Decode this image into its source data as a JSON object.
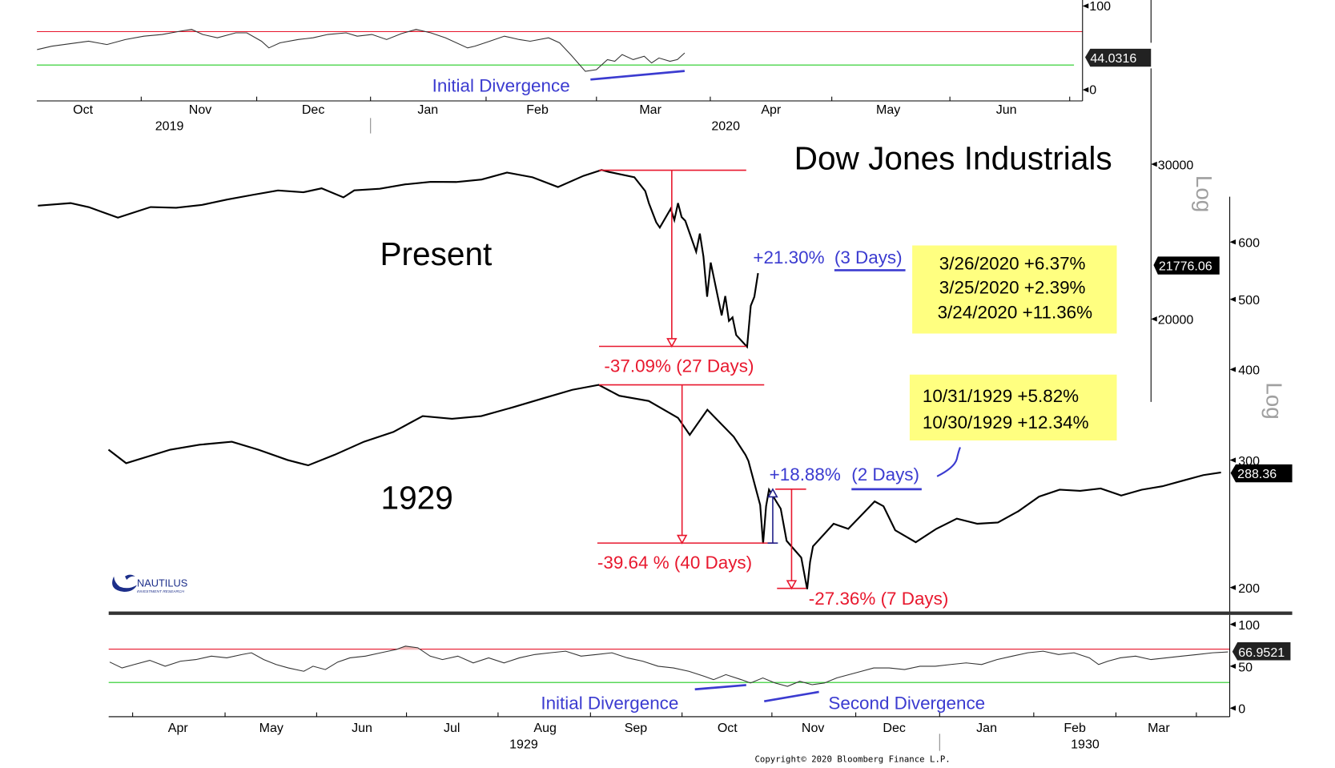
{
  "title": "Dow Jones Industrials",
  "labels": {
    "present": "Present",
    "year1929": "1929",
    "present_drop": "-37.09% (27 Days)",
    "present_rebound_pct": "+21.30%",
    "present_rebound_days": "(3 Days)",
    "drop1929": "-39.64 % (40 Days)",
    "rebound1929_pct": "+18.88%",
    "rebound1929_days": "(2 Days)",
    "second_drop1929": "-27.36% (7 Days)",
    "initial_divergence_top": "Initial Divergence",
    "initial_divergence_bottom": "Initial Divergence",
    "second_divergence": "Second Divergence",
    "log_present": "Log",
    "log_1929": "Log",
    "copyright": "Copyright© 2020 Bloomberg Finance L.P.",
    "logo_name": "NAUTILUS",
    "logo_sub": "INVESTMENT RESEARCH"
  },
  "present_box": [
    "3/26/2020 +6.37%",
    "3/25/2020 +2.39%",
    "3/24/2020 +11.36%"
  ],
  "box1929": [
    "10/31/1929 +5.82%",
    "10/30/1929 +12.34%"
  ],
  "colors": {
    "red": "#e8182e",
    "blue": "#3b3bd0",
    "green": "#22cc22",
    "yellow": "#ffff80",
    "overbought_fill": "#f4b8b8"
  },
  "chart_data": [
    {
      "type": "line",
      "name": "RSI (Present)",
      "ylim": [
        0,
        100
      ],
      "yticks": [
        "100",
        "0"
      ],
      "thresholds": {
        "overbought": 70,
        "oversold": 30
      },
      "last_value": "44.0316",
      "x_unit": "days since 2019-10-01",
      "xticks": [
        "Oct",
        "Nov",
        "Dec",
        "Jan",
        "Feb",
        "Mar",
        "Apr",
        "May",
        "Jun"
      ],
      "years": [
        "2019",
        "2020"
      ],
      "points": [
        [
          1,
          48
        ],
        [
          5,
          52
        ],
        [
          10,
          55
        ],
        [
          15,
          58
        ],
        [
          20,
          54
        ],
        [
          25,
          60
        ],
        [
          30,
          64
        ],
        [
          35,
          66
        ],
        [
          40,
          70
        ],
        [
          43,
          72
        ],
        [
          46,
          66
        ],
        [
          50,
          62
        ],
        [
          55,
          68
        ],
        [
          58,
          68
        ],
        [
          62,
          58
        ],
        [
          64,
          50
        ],
        [
          67,
          56
        ],
        [
          72,
          60
        ],
        [
          76,
          62
        ],
        [
          80,
          66
        ],
        [
          85,
          68
        ],
        [
          88,
          64
        ],
        [
          92,
          66
        ],
        [
          96,
          60
        ],
        [
          100,
          67
        ],
        [
          104,
          72
        ],
        [
          108,
          68
        ],
        [
          112,
          62
        ],
        [
          118,
          50
        ],
        [
          120,
          52
        ],
        [
          124,
          58
        ],
        [
          128,
          64
        ],
        [
          132,
          60
        ],
        [
          135,
          58
        ],
        [
          140,
          62
        ],
        [
          143,
          56
        ],
        [
          146,
          42
        ],
        [
          150,
          22
        ],
        [
          153,
          24
        ],
        [
          156,
          36
        ],
        [
          158,
          34
        ],
        [
          160,
          42
        ],
        [
          163,
          36
        ],
        [
          166,
          40
        ],
        [
          168,
          32
        ],
        [
          170,
          38
        ],
        [
          173,
          34
        ],
        [
          175,
          36
        ],
        [
          177,
          44
        ]
      ]
    },
    {
      "type": "line",
      "name": "Dow Jones Industrials (Present)",
      "scale": "log",
      "yticks": [
        "30000",
        "20000"
      ],
      "last_value": "21776.06",
      "x_unit": "days since 2019-10-01",
      "points": [
        [
          -21,
          26909
        ],
        [
          -12,
          27094
        ],
        [
          -7,
          26807
        ],
        [
          1,
          26078
        ],
        [
          10,
          26817
        ],
        [
          17,
          26770
        ],
        [
          24,
          26958
        ],
        [
          31,
          27347
        ],
        [
          38,
          27681
        ],
        [
          45,
          28005
        ],
        [
          52,
          27876
        ],
        [
          57,
          28164
        ],
        [
          63,
          27502
        ],
        [
          66,
          28015
        ],
        [
          73,
          28135
        ],
        [
          80,
          28455
        ],
        [
          87,
          28645
        ],
        [
          94,
          28634
        ],
        [
          101,
          28823
        ],
        [
          108,
          29348
        ],
        [
          115,
          28989
        ],
        [
          122,
          28256
        ],
        [
          129,
          29102
        ],
        [
          134,
          29551
        ],
        [
          136,
          29398
        ],
        [
          143,
          28992
        ],
        [
          146,
          27961
        ],
        [
          147,
          27081
        ],
        [
          149,
          25766
        ],
        [
          150,
          25409
        ],
        [
          153,
          26703
        ],
        [
          154,
          25917
        ],
        [
          155,
          27091
        ],
        [
          156,
          26121
        ],
        [
          157,
          25865
        ],
        [
          160,
          23851
        ],
        [
          161,
          25018
        ],
        [
          162,
          23553
        ],
        [
          163,
          21200
        ],
        [
          164,
          23185
        ],
        [
          167,
          20189
        ],
        [
          168,
          21237
        ],
        [
          169,
          19899
        ],
        [
          170,
          20087
        ],
        [
          171,
          19174
        ],
        [
          174,
          18591
        ],
        [
          175,
          20705
        ],
        [
          176,
          21200
        ],
        [
          177,
          22552
        ]
      ]
    },
    {
      "type": "line",
      "name": "Dow Jones Industrials (1929)",
      "scale": "log",
      "yticks": [
        "600",
        "500",
        "400",
        "300",
        "200"
      ],
      "last_value": "288.36",
      "x_unit": "days since 1929-04-01",
      "points": [
        [
          -12,
          310
        ],
        [
          -6,
          297
        ],
        [
          9,
          310
        ],
        [
          19,
          315
        ],
        [
          30,
          318
        ],
        [
          39,
          310
        ],
        [
          49,
          300
        ],
        [
          56,
          295
        ],
        [
          65,
          305
        ],
        [
          75,
          318
        ],
        [
          85,
          328
        ],
        [
          95,
          345
        ],
        [
          105,
          342
        ],
        [
          115,
          345
        ],
        [
          126,
          355
        ],
        [
          136,
          365
        ],
        [
          146,
          375
        ],
        [
          155,
          381
        ],
        [
          162,
          368
        ],
        [
          172,
          362
        ],
        [
          182,
          343
        ],
        [
          186,
          325
        ],
        [
          192,
          352
        ],
        [
          201,
          323
        ],
        [
          205,
          305
        ],
        [
          206,
          299
        ],
        [
          210,
          260
        ],
        [
          211,
          230
        ],
        [
          212,
          259
        ],
        [
          213,
          273
        ],
        [
          217,
          257
        ],
        [
          219,
          232
        ],
        [
          224,
          220
        ],
        [
          226,
          199
        ],
        [
          227,
          217
        ],
        [
          228,
          228
        ],
        [
          235,
          245
        ],
        [
          240,
          241
        ],
        [
          249,
          263
        ],
        [
          252,
          259
        ],
        [
          256,
          240
        ],
        [
          263,
          231
        ],
        [
          270,
          241
        ],
        [
          277,
          249
        ],
        [
          284,
          245
        ],
        [
          291,
          246
        ],
        [
          298,
          255
        ],
        [
          305,
          267
        ],
        [
          312,
          273
        ],
        [
          319,
          272
        ],
        [
          326,
          274
        ],
        [
          333,
          268
        ],
        [
          340,
          273
        ],
        [
          347,
          276
        ],
        [
          354,
          281
        ],
        [
          361,
          286
        ],
        [
          367,
          288.36
        ]
      ]
    },
    {
      "type": "line",
      "name": "RSI (1929)",
      "ylim": [
        0,
        100
      ],
      "yticks": [
        "100",
        "50",
        "0"
      ],
      "thresholds": {
        "overbought": 70,
        "oversold": 30
      },
      "last_value": "66.9521",
      "x_unit": "days since 1929-04-01",
      "xticks": [
        "Apr",
        "May",
        "Jun",
        "Jul",
        "Aug",
        "Sep",
        "Oct",
        "Nov",
        "Dec",
        "Jan",
        "Feb",
        "Mar"
      ],
      "years": [
        "1929",
        "1930"
      ],
      "points": [
        [
          -8,
          55
        ],
        [
          -4,
          48
        ],
        [
          0,
          52
        ],
        [
          5,
          57
        ],
        [
          10,
          50
        ],
        [
          15,
          56
        ],
        [
          20,
          58
        ],
        [
          25,
          62
        ],
        [
          30,
          60
        ],
        [
          35,
          64
        ],
        [
          38,
          66
        ],
        [
          42,
          58
        ],
        [
          46,
          52
        ],
        [
          50,
          48
        ],
        [
          55,
          44
        ],
        [
          58,
          50
        ],
        [
          62,
          46
        ],
        [
          66,
          55
        ],
        [
          70,
          60
        ],
        [
          75,
          62
        ],
        [
          80,
          66
        ],
        [
          85,
          70
        ],
        [
          88,
          74
        ],
        [
          92,
          72
        ],
        [
          96,
          62
        ],
        [
          100,
          58
        ],
        [
          105,
          62
        ],
        [
          110,
          54
        ],
        [
          115,
          60
        ],
        [
          120,
          54
        ],
        [
          125,
          60
        ],
        [
          130,
          64
        ],
        [
          135,
          66
        ],
        [
          140,
          68
        ],
        [
          145,
          62
        ],
        [
          150,
          64
        ],
        [
          155,
          66
        ],
        [
          160,
          60
        ],
        [
          165,
          56
        ],
        [
          170,
          50
        ],
        [
          175,
          48
        ],
        [
          180,
          44
        ],
        [
          185,
          38
        ],
        [
          188,
          34
        ],
        [
          192,
          40
        ],
        [
          197,
          34
        ],
        [
          200,
          30
        ],
        [
          204,
          36
        ],
        [
          208,
          30
        ],
        [
          212,
          26
        ],
        [
          216,
          32
        ],
        [
          220,
          28
        ],
        [
          224,
          30
        ],
        [
          228,
          36
        ],
        [
          232,
          40
        ],
        [
          236,
          44
        ],
        [
          240,
          48
        ],
        [
          245,
          48
        ],
        [
          250,
          46
        ],
        [
          255,
          50
        ],
        [
          260,
          50
        ],
        [
          265,
          52
        ],
        [
          270,
          54
        ],
        [
          275,
          52
        ],
        [
          280,
          58
        ],
        [
          285,
          62
        ],
        [
          290,
          66
        ],
        [
          295,
          68
        ],
        [
          300,
          64
        ],
        [
          305,
          66
        ],
        [
          310,
          60
        ],
        [
          313,
          52
        ],
        [
          316,
          56
        ],
        [
          320,
          60
        ],
        [
          325,
          62
        ],
        [
          330,
          58
        ],
        [
          335,
          60
        ],
        [
          340,
          62
        ],
        [
          345,
          64
        ],
        [
          350,
          66
        ],
        [
          355,
          67
        ]
      ]
    }
  ]
}
